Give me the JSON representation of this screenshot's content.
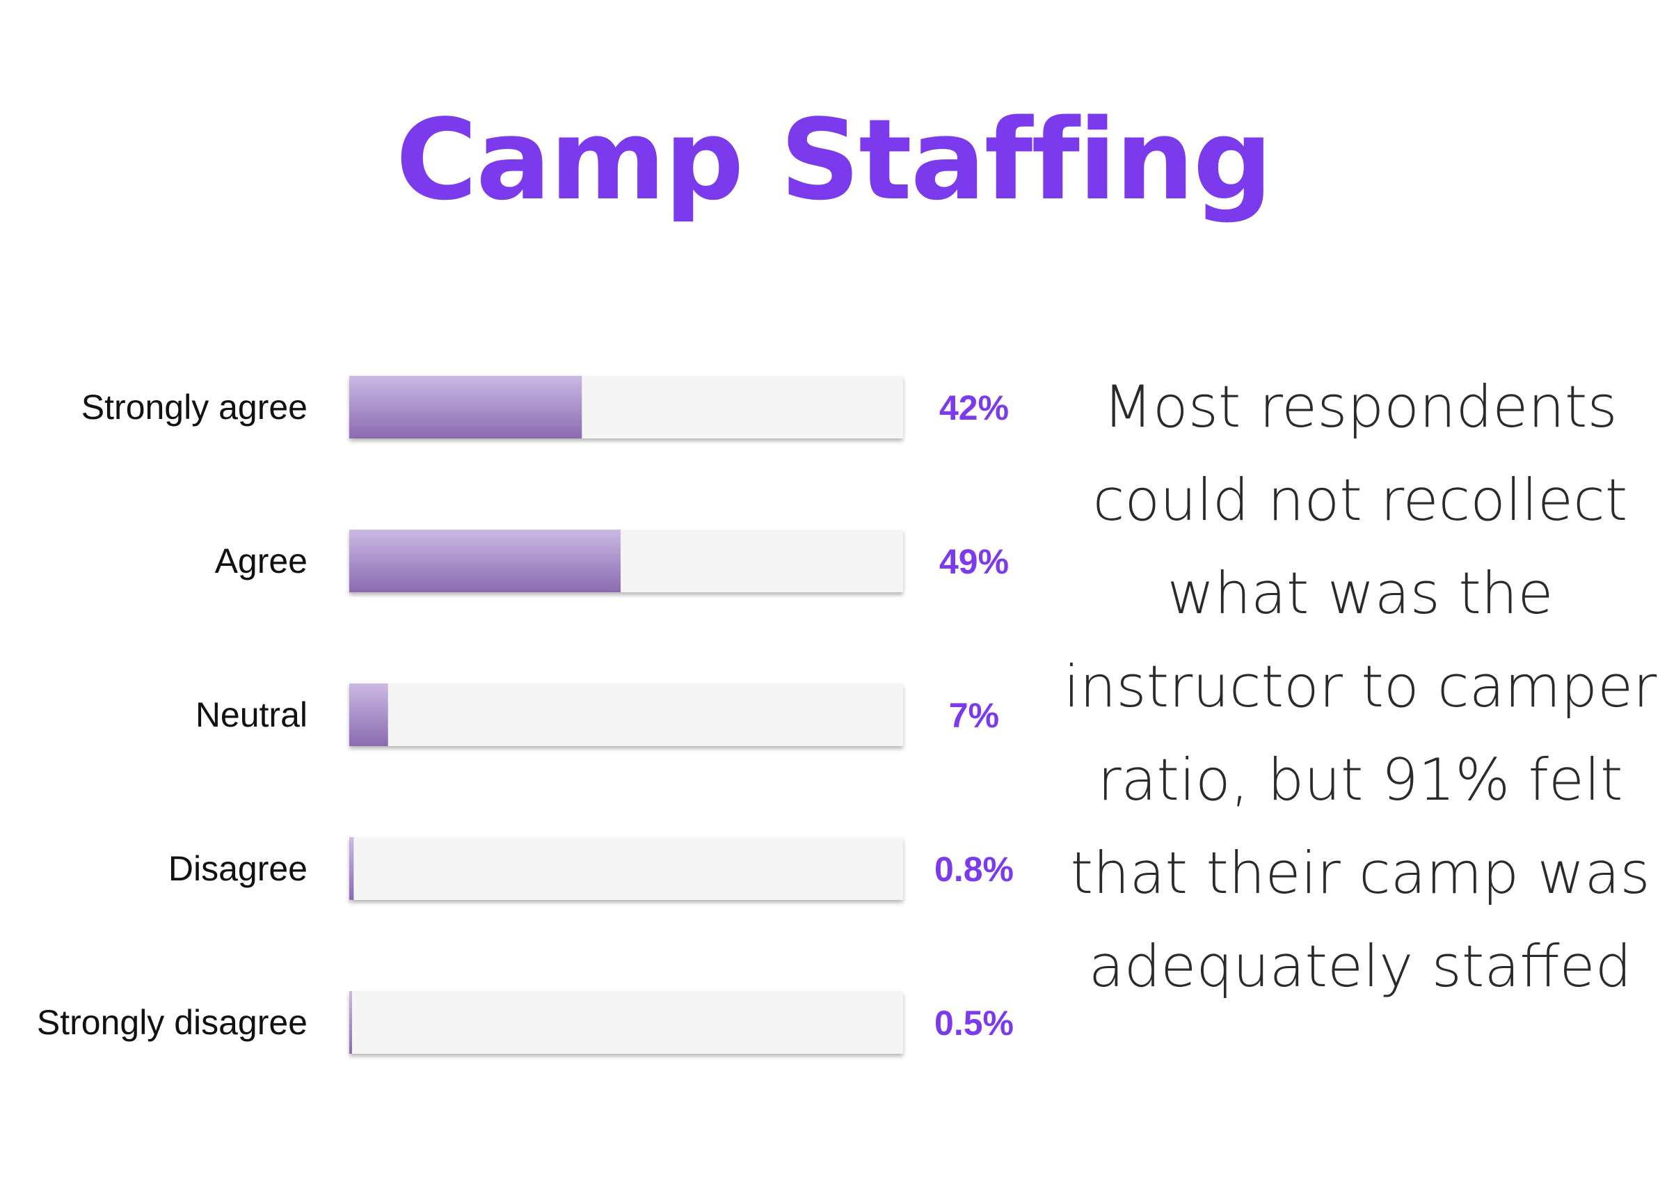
{
  "title": "Camp Staffing",
  "note": "Most respondents could not recollect what was the instructor to camper ratio, but 91% felt that their camp was adequately staffed",
  "colors": {
    "accent": "#7c3aed",
    "bar_fill_top": "#cbb9e4",
    "bar_fill_bottom": "#8a6bb0",
    "track": "#f5f5f5"
  },
  "chart_data": {
    "type": "bar",
    "orientation": "horizontal",
    "categories": [
      "Strongly agree",
      "Agree",
      "Neutral",
      "Disagree",
      "Strongly disagree"
    ],
    "values": [
      42,
      49,
      7,
      0.8,
      0.5
    ],
    "value_labels": [
      "42%",
      "49%",
      "7%",
      "0.8%",
      "0.5%"
    ],
    "xlim": [
      0,
      100
    ],
    "grid": false,
    "legend": "none"
  }
}
